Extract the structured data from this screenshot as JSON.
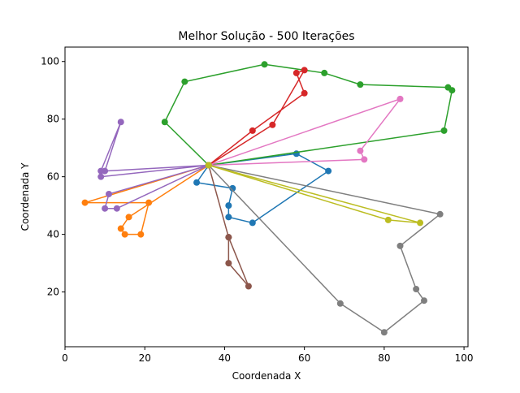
{
  "chart_data": {
    "type": "line",
    "title": "Melhor Solução - 500 Iterações",
    "xlabel": "Coordenada X",
    "ylabel": "Coordenada Y",
    "xlim": [
      0,
      101
    ],
    "ylim": [
      1,
      105
    ],
    "xticks": [
      0,
      20,
      40,
      60,
      80,
      100
    ],
    "yticks": [
      20,
      40,
      60,
      80,
      100
    ],
    "grid": false,
    "depot": [
      36,
      64
    ],
    "series": [
      {
        "color": "#1f77b4",
        "points": [
          [
            36,
            64
          ],
          [
            33,
            58
          ],
          [
            42,
            56
          ],
          [
            41,
            50
          ],
          [
            41,
            46
          ],
          [
            47,
            44
          ],
          [
            66,
            62
          ],
          [
            58,
            68
          ],
          [
            36,
            64
          ]
        ]
      },
      {
        "color": "#ff7f0e",
        "points": [
          [
            36,
            64
          ],
          [
            16,
            46
          ],
          [
            14,
            42
          ],
          [
            15,
            40
          ],
          [
            19,
            40
          ],
          [
            21,
            51
          ],
          [
            5,
            51
          ],
          [
            36,
            64
          ]
        ]
      },
      {
        "color": "#2ca02c",
        "points": [
          [
            36,
            64
          ],
          [
            25,
            79
          ],
          [
            30,
            93
          ],
          [
            50,
            99
          ],
          [
            65,
            96
          ],
          [
            74,
            92
          ],
          [
            96,
            91
          ],
          [
            97,
            90
          ],
          [
            95,
            76
          ],
          [
            36,
            64
          ]
        ]
      },
      {
        "color": "#d62728",
        "points": [
          [
            36,
            64
          ],
          [
            47,
            76
          ],
          [
            60,
            89
          ],
          [
            58,
            96
          ],
          [
            60,
            97
          ],
          [
            52,
            78
          ],
          [
            36,
            64
          ]
        ]
      },
      {
        "color": "#9467bd",
        "points": [
          [
            36,
            64
          ],
          [
            11,
            54
          ],
          [
            10,
            49
          ],
          [
            13,
            49
          ],
          [
            36,
            64
          ],
          [
            9,
            60
          ],
          [
            9,
            62
          ],
          [
            14,
            79
          ],
          [
            10,
            62
          ],
          [
            36,
            64
          ]
        ]
      },
      {
        "color": "#8c564b",
        "points": [
          [
            36,
            64
          ],
          [
            41,
            39
          ],
          [
            46,
            22
          ],
          [
            41,
            30
          ],
          [
            41,
            39
          ],
          [
            36,
            64
          ]
        ]
      },
      {
        "color": "#e377c2",
        "points": [
          [
            36,
            64
          ],
          [
            84,
            87
          ],
          [
            74,
            69
          ],
          [
            75,
            66
          ],
          [
            36,
            64
          ]
        ]
      },
      {
        "color": "#7f7f7f",
        "points": [
          [
            36,
            64
          ],
          [
            94,
            47
          ],
          [
            84,
            36
          ],
          [
            88,
            21
          ],
          [
            90,
            17
          ],
          [
            80,
            6
          ],
          [
            69,
            16
          ],
          [
            36,
            64
          ]
        ]
      },
      {
        "color": "#bcbd22",
        "points": [
          [
            36,
            64
          ],
          [
            81,
            45
          ],
          [
            89,
            44
          ],
          [
            36,
            64
          ]
        ]
      }
    ]
  }
}
